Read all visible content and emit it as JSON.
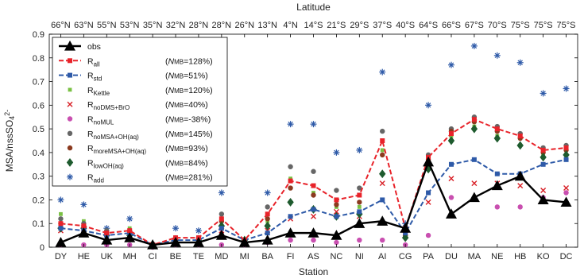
{
  "chart_data": {
    "type": "scatter",
    "title": "",
    "xlabel": "Station",
    "ylabel": "MSA/nssSO4^2-",
    "top_axis_label": "Latitude",
    "ylim": [
      0,
      0.9
    ],
    "yticks": [
      "0",
      "0.1",
      "0.2",
      "0.3",
      "0.4",
      "0.5",
      "0.6",
      "0.7",
      "0.8",
      "0.9"
    ],
    "grid": false,
    "legend_position": "top-left",
    "categories": [
      "DY",
      "HE",
      "UK",
      "MH",
      "CI",
      "BE",
      "TE",
      "MD",
      "MI",
      "BA",
      "FI",
      "AS",
      "NC",
      "NI",
      "AI",
      "CG",
      "PA",
      "DU",
      "MA",
      "NE",
      "HB",
      "KO",
      "DC"
    ],
    "latitudes": [
      "66°N",
      "63°N",
      "55°N",
      "53°N",
      "35°N",
      "32°N",
      "28°N",
      "28°N",
      "26°N",
      "13°N",
      "4°N",
      "14°S",
      "21°S",
      "29°S",
      "37°S",
      "40°S",
      "64°S",
      "66°S",
      "67°S",
      "70°S",
      "75°S",
      "75°S",
      "75°S"
    ],
    "series": [
      {
        "name": "obs",
        "nmb": "",
        "color": "#000000",
        "marker": "triangle",
        "line": "solid",
        "values": [
          0.02,
          0.06,
          0.03,
          0.04,
          0.01,
          0.02,
          0.02,
          0.05,
          0.02,
          0.03,
          0.06,
          0.06,
          0.05,
          0.1,
          0.11,
          0.08,
          0.36,
          0.14,
          0.21,
          0.26,
          0.3,
          0.2,
          0.19
        ]
      },
      {
        "name": "R",
        "sub": "all",
        "nmb": "128%",
        "color": "#e8232a",
        "marker": "square",
        "line": "dashed",
        "values": [
          0.1,
          0.09,
          0.06,
          0.07,
          0.01,
          0.04,
          0.04,
          0.12,
          0.03,
          0.14,
          0.28,
          0.26,
          0.2,
          0.22,
          0.45,
          0.08,
          0.38,
          0.48,
          0.54,
          0.5,
          0.47,
          0.41,
          0.42
        ]
      },
      {
        "name": "R",
        "sub": "std",
        "nmb": "51%",
        "color": "#2e5aa8",
        "marker": "square",
        "line": "dashed",
        "values": [
          0.08,
          0.07,
          0.05,
          0.06,
          0.01,
          0.03,
          0.03,
          0.08,
          0.03,
          0.06,
          0.13,
          0.16,
          0.13,
          0.15,
          0.2,
          0.06,
          0.23,
          0.35,
          0.37,
          0.31,
          0.31,
          0.35,
          0.37
        ]
      },
      {
        "name": "R",
        "sub": "Kettle",
        "nmb": "120%",
        "color": "#79c043",
        "marker": "square-small",
        "line": "none",
        "values": [
          0.14,
          0.11,
          0.07,
          0.08,
          0.01,
          0.04,
          0.04,
          0.11,
          0.03,
          0.11,
          0.29,
          0.23,
          0.17,
          0.17,
          0.41,
          0.05,
          0.35,
          0.47,
          0.51,
          0.47,
          0.46,
          0.39,
          0.39
        ]
      },
      {
        "name": "R",
        "sub": "noDMS+BrO",
        "nmb": "40%",
        "color": "#d81f26",
        "marker": "x",
        "line": "none",
        "values": [
          0.07,
          0.06,
          0.04,
          0.05,
          0.01,
          0.03,
          0.03,
          0.07,
          0.02,
          0.07,
          0.12,
          0.13,
          0.15,
          0.13,
          0.27,
          0.07,
          0.19,
          0.29,
          0.27,
          0.27,
          0.26,
          0.24,
          0.25
        ]
      },
      {
        "name": "R",
        "sub": "noMUL",
        "nmb": "-38%",
        "color": "#c94fb0",
        "marker": "circle",
        "line": "none",
        "values": [
          0.01,
          0.01,
          0.01,
          0.01,
          0.0,
          0.01,
          0.01,
          0.01,
          0.01,
          0.02,
          0.03,
          0.03,
          0.02,
          0.03,
          0.03,
          0.01,
          0.05,
          0.21,
          0.21,
          0.17,
          0.17,
          0.21,
          0.23
        ]
      },
      {
        "name": "R",
        "sub": "noMSA+OH(aq)",
        "nmb": "145%",
        "color": "#666666",
        "marker": "circle",
        "line": "none",
        "values": [
          0.12,
          0.1,
          0.07,
          0.07,
          0.01,
          0.04,
          0.04,
          0.14,
          0.03,
          0.17,
          0.34,
          0.32,
          0.24,
          0.25,
          0.49,
          0.05,
          0.39,
          0.5,
          0.55,
          0.51,
          0.48,
          0.42,
          0.43
        ]
      },
      {
        "name": "R",
        "sub": "moreMSA+OH(aq)",
        "nmb": "93%",
        "color": "#8b3a1f",
        "marker": "circle",
        "line": "none",
        "values": [
          0.1,
          0.09,
          0.06,
          0.06,
          0.01,
          0.03,
          0.03,
          0.11,
          0.03,
          0.12,
          0.25,
          0.22,
          0.18,
          0.19,
          0.39,
          0.05,
          0.37,
          0.49,
          0.53,
          0.49,
          0.46,
          0.4,
          0.41
        ]
      },
      {
        "name": "R",
        "sub": "lowOH(aq)",
        "nmb": "84%",
        "color": "#1e5b2e",
        "marker": "diamond",
        "line": "none",
        "values": [
          0.08,
          0.08,
          0.05,
          0.05,
          0.01,
          0.03,
          0.03,
          0.09,
          0.03,
          0.09,
          0.19,
          0.16,
          0.13,
          0.14,
          0.31,
          0.04,
          0.33,
          0.45,
          0.5,
          0.46,
          0.43,
          0.38,
          0.39
        ]
      },
      {
        "name": "R",
        "sub": "add",
        "nmb": "281%",
        "color": "#2e5aa8",
        "marker": "asterisk",
        "line": "none",
        "values": [
          0.2,
          0.18,
          0.08,
          0.12,
          0.01,
          0.08,
          0.07,
          0.23,
          0.03,
          0.23,
          0.52,
          0.52,
          0.4,
          0.41,
          0.74,
          0.1,
          0.6,
          0.77,
          0.85,
          0.81,
          0.78,
          0.65,
          0.67
        ]
      }
    ],
    "legend_nmb_prefix": "N",
    "legend_nmb_sub": "MB"
  }
}
